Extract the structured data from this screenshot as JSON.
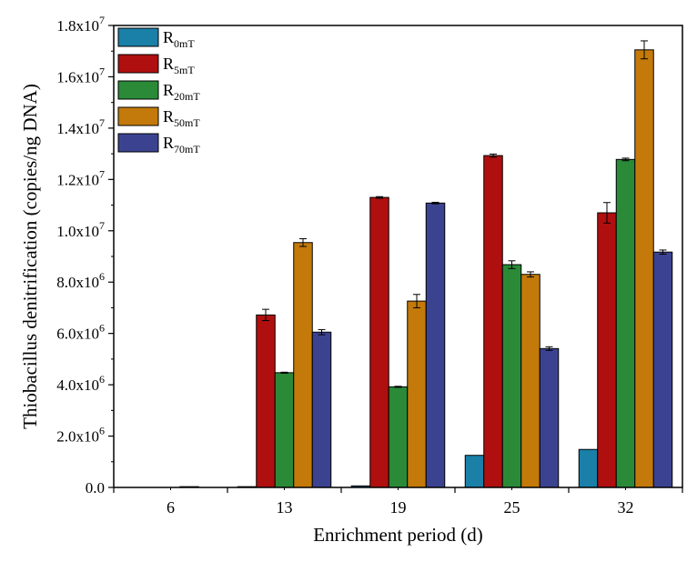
{
  "chart_data": {
    "type": "bar",
    "title": "",
    "xlabel": "Enrichment period (d)",
    "ylabel": "Thiobacillus denitrification (copies/ng DNA)",
    "categories": [
      "6",
      "13",
      "19",
      "25",
      "32"
    ],
    "ylim": [
      0,
      18000000
    ],
    "yticks": [
      {
        "value": 0,
        "mantissa": "0.0",
        "exp": ""
      },
      {
        "value": 2000000,
        "mantissa": "2.0x10",
        "exp": "6"
      },
      {
        "value": 4000000,
        "mantissa": "4.0x10",
        "exp": "6"
      },
      {
        "value": 6000000,
        "mantissa": "6.0x10",
        "exp": "6"
      },
      {
        "value": 8000000,
        "mantissa": "8.0x10",
        "exp": "6"
      },
      {
        "value": 10000000,
        "mantissa": "1.0x10",
        "exp": "7"
      },
      {
        "value": 12000000,
        "mantissa": "1.2x10",
        "exp": "7"
      },
      {
        "value": 14000000,
        "mantissa": "1.4x10",
        "exp": "7"
      },
      {
        "value": 16000000,
        "mantissa": "1.6x10",
        "exp": "7"
      },
      {
        "value": 18000000,
        "mantissa": "1.8x10",
        "exp": "7"
      }
    ],
    "series": [
      {
        "name": "R",
        "sub": "0mT",
        "color": "#1a80a8",
        "values": [
          0,
          30000,
          60000,
          1250000,
          1480000
        ],
        "errors": [
          0,
          0,
          0,
          0,
          0
        ]
      },
      {
        "name": "R",
        "sub": "5mT",
        "color": "#b00f0f",
        "values": [
          0,
          6720000,
          11300000,
          12930000,
          10700000
        ],
        "errors": [
          0,
          220000,
          30000,
          60000,
          400000
        ]
      },
      {
        "name": "R",
        "sub": "20mT",
        "color": "#2a8a38",
        "values": [
          0,
          4470000,
          3920000,
          8680000,
          12780000
        ],
        "errors": [
          0,
          20000,
          20000,
          150000,
          50000
        ]
      },
      {
        "name": "R",
        "sub": "50mT",
        "color": "#c37a0a",
        "values": [
          30000,
          9540000,
          7260000,
          8300000,
          17050000
        ],
        "errors": [
          0,
          150000,
          260000,
          100000,
          350000
        ]
      },
      {
        "name": "R",
        "sub": "70mT",
        "color": "#3b4391",
        "values": [
          0,
          6050000,
          11080000,
          5410000,
          9170000
        ],
        "errors": [
          0,
          100000,
          30000,
          70000,
          80000
        ]
      }
    ],
    "legend_position": "top-left"
  }
}
